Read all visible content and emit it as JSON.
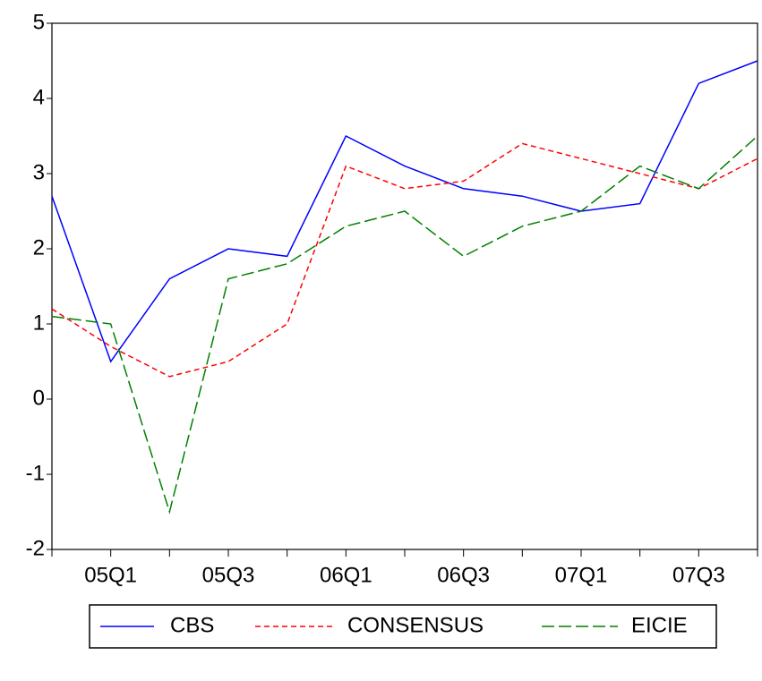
{
  "chart_data": {
    "type": "line",
    "categories": [
      null,
      "05Q1",
      null,
      "05Q3",
      null,
      "06Q1",
      null,
      "06Q3",
      null,
      "07Q1",
      null,
      "07Q3",
      null
    ],
    "series": [
      {
        "name": "CBS",
        "color": "#0000ff",
        "values": [
          2.7,
          0.5,
          1.6,
          2.0,
          1.9,
          3.5,
          3.1,
          2.8,
          2.7,
          2.5,
          2.6,
          4.2,
          4.5
        ]
      },
      {
        "name": "CONSENSUS",
        "color": "#ff0000",
        "values": [
          1.2,
          0.7,
          0.3,
          0.5,
          1.0,
          3.1,
          2.8,
          2.9,
          3.4,
          3.2,
          3.0,
          2.8,
          3.2
        ]
      },
      {
        "name": "EICIE",
        "color": "#008000",
        "values": [
          1.1,
          1.0,
          -1.5,
          1.6,
          1.8,
          2.3,
          2.5,
          1.9,
          2.3,
          2.5,
          3.1,
          2.8,
          3.5
        ]
      }
    ],
    "ylim": [
      -2,
      5
    ],
    "yticks": [
      -2,
      -1,
      0,
      1,
      2,
      3,
      4,
      5
    ],
    "legend": "bottom"
  }
}
